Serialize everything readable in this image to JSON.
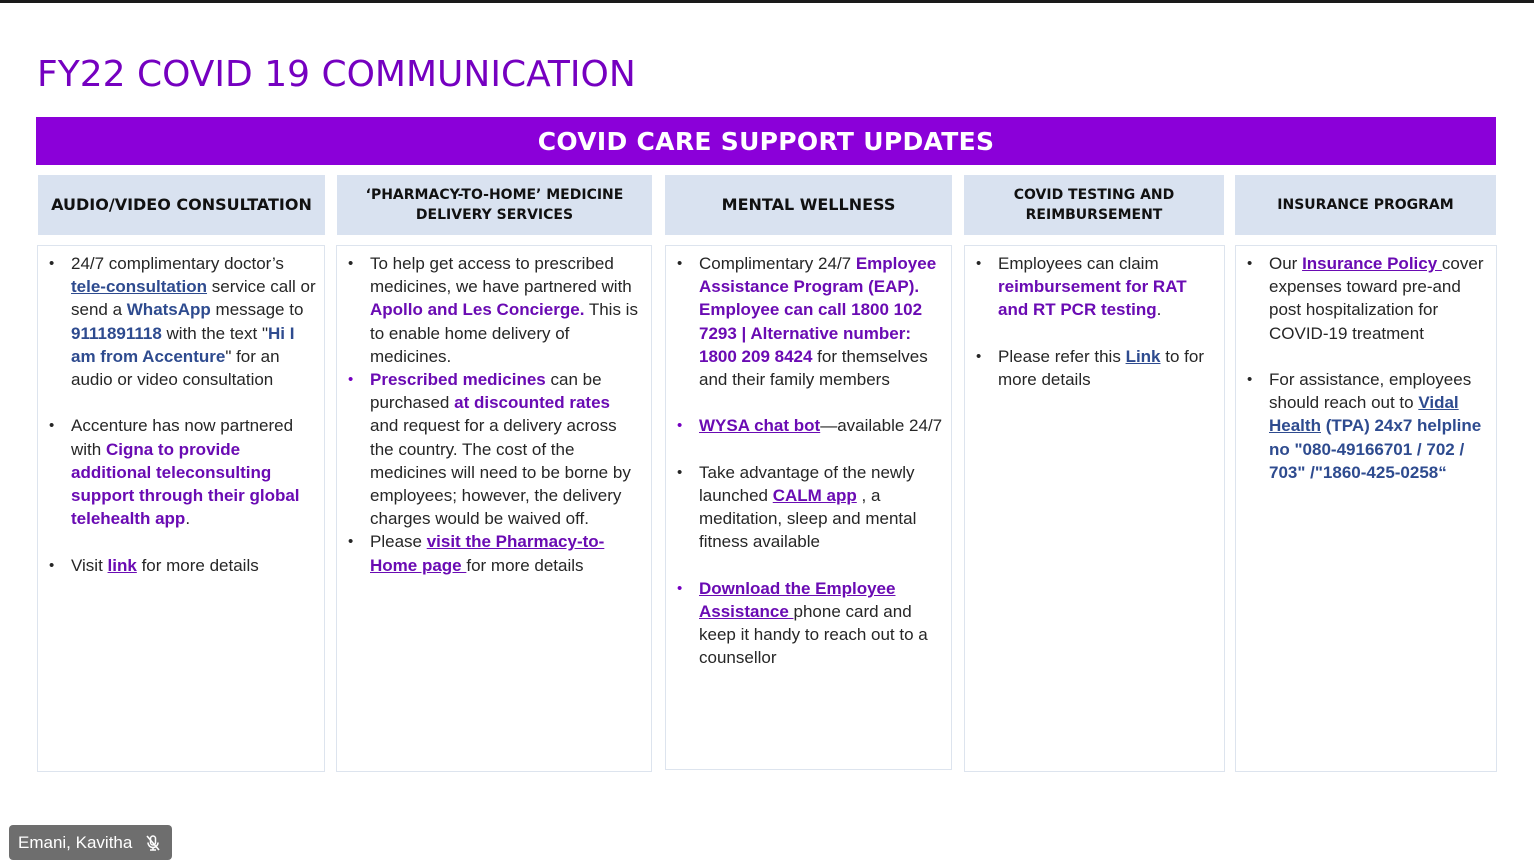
{
  "slide": {
    "title": "FY22 COVID 19 COMMUNICATION",
    "banner": "COVID CARE SUPPORT UPDATES"
  },
  "columns": [
    {
      "header": "AUDIO/VIDEO CONSULTATION",
      "bullets": [
        [
          {
            "t": "24/7 complimentary doctor’s "
          },
          {
            "t": "tele-consultation",
            "s": "lnk-blue"
          },
          {
            "t": " service call or send a "
          },
          {
            "t": "WhatsApp",
            "s": "hl-blue"
          },
          {
            "t": " message to "
          },
          {
            "t": "9111891118",
            "s": "hl-blue"
          },
          {
            "t": " with the text \""
          },
          {
            "t": "Hi I am from Accenture",
            "s": "hl-blue"
          },
          {
            "t": "\" for an audio or video consultation"
          }
        ],
        [
          {
            "t": "Accenture has now partnered with "
          },
          {
            "t": "Cigna to provide additional teleconsulting support through their global telehealth app",
            "s": "hl-purple"
          },
          {
            "t": "."
          }
        ],
        [
          {
            "t": "Visit "
          },
          {
            "t": "link",
            "s": "lnk-purple"
          },
          {
            "t": " for more details"
          }
        ]
      ]
    },
    {
      "header": "‘PHARMACY-TO-HOME’ MEDICINE DELIVERY SERVICES",
      "bullets": [
        [
          {
            "t": "To help get access to prescribed medicines, we have partnered with "
          },
          {
            "t": "Apollo and Les Concierge.",
            "s": "hl-purple"
          },
          {
            "t": " This is to enable home delivery of medicines."
          }
        ],
        [
          {
            "t": "Prescribed medicines",
            "s": "hl-purple"
          },
          {
            "t": " can be purchased "
          },
          {
            "t": "at discounted rates",
            "s": "hl-purple"
          },
          {
            "t": " and request for a delivery across the country. The cost of the medicines will need to be borne by employees; however, the delivery charges would be waived off."
          }
        ],
        [
          {
            "t": "Please "
          },
          {
            "t": "visit the Pharmacy-to-Home page ",
            "s": "lnk-purple"
          },
          {
            "t": "for more details"
          }
        ]
      ]
    },
    {
      "header": "MENTAL WELLNESS",
      "bullets": [
        [
          {
            "t": "Complimentary 24/7 "
          },
          {
            "t": "Employee Assistance Program (EAP). Employee can call 1800 102 7293 | Alternative number: 1800 209 8424",
            "s": "hl-purple"
          },
          {
            "t": " for themselves and their family members"
          }
        ],
        [
          {
            "t": "WYSA chat bot",
            "s": "lnk-purple"
          },
          {
            "t": "—available 24/7"
          }
        ],
        [
          {
            "t": "Take advantage of the newly launched "
          },
          {
            "t": "CALM app",
            "s": "lnk-purple"
          },
          {
            "t": " , a meditation, sleep and mental fitness available"
          }
        ],
        [
          {
            "t": "Download the Employee Assistance ",
            "s": "lnk-purple"
          },
          {
            "t": "phone card and keep it handy to reach out to a counsellor"
          }
        ]
      ]
    },
    {
      "header": "COVID TESTING AND REIMBURSEMENT",
      "bullets": [
        [
          {
            "t": "Employees can claim "
          },
          {
            "t": "reimbursement for RAT and RT PCR testing",
            "s": "hl-purple"
          },
          {
            "t": "."
          }
        ],
        [
          {
            "t": "Please refer this "
          },
          {
            "t": "Link",
            "s": "lnk-blue"
          },
          {
            "t": " to for more details"
          }
        ]
      ]
    },
    {
      "header": "INSURANCE PROGRAM",
      "bullets": [
        [
          {
            "t": "Our "
          },
          {
            "t": "Insurance Policy ",
            "s": "lnk-purple"
          },
          {
            "t": "cover expenses toward pre-and post hospitalization for COVID-19 treatment"
          }
        ],
        [
          {
            "t": "For assistance, employees should reach out to "
          },
          {
            "t": "Vidal Health",
            "s": "lnk-blue"
          },
          {
            "t": " (TPA) 24x7 helpline no \"080-49166701 / 702 / 703\" /\"1860-425-0258“",
            "s": "hl-blue"
          }
        ]
      ]
    }
  ],
  "participant": {
    "name": "Emani, Kavitha",
    "mic_icon": "mic-muted-icon"
  }
}
